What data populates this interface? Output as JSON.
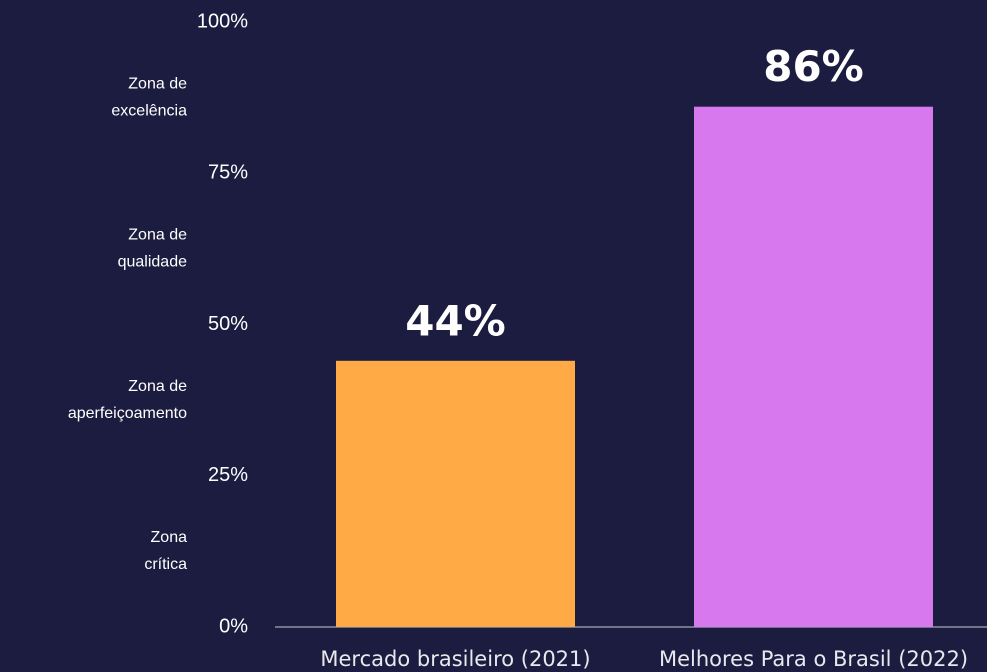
{
  "chart_data": {
    "type": "bar",
    "categories": [
      "Mercado brasileiro (2021)",
      "Melhores Para o Brasil (2022)"
    ],
    "values": [
      44,
      86
    ],
    "value_labels": [
      "44%",
      "86%"
    ],
    "colors": [
      "#ffaa45",
      "#d878ee"
    ],
    "ylim": [
      0,
      100
    ],
    "yticks": [
      {
        "value": 0,
        "label": "0%"
      },
      {
        "value": 25,
        "label": "25%"
      },
      {
        "value": 50,
        "label": "50%"
      },
      {
        "value": 75,
        "label": "75%"
      },
      {
        "value": 100,
        "label": "100%"
      }
    ],
    "annotations": [
      [
        "Zona",
        "crítica"
      ],
      [
        "Zona de",
        "aperfeiçoamento"
      ],
      [
        "Zona de",
        "qualidade"
      ],
      [
        "Zona de",
        "excelência"
      ]
    ]
  }
}
